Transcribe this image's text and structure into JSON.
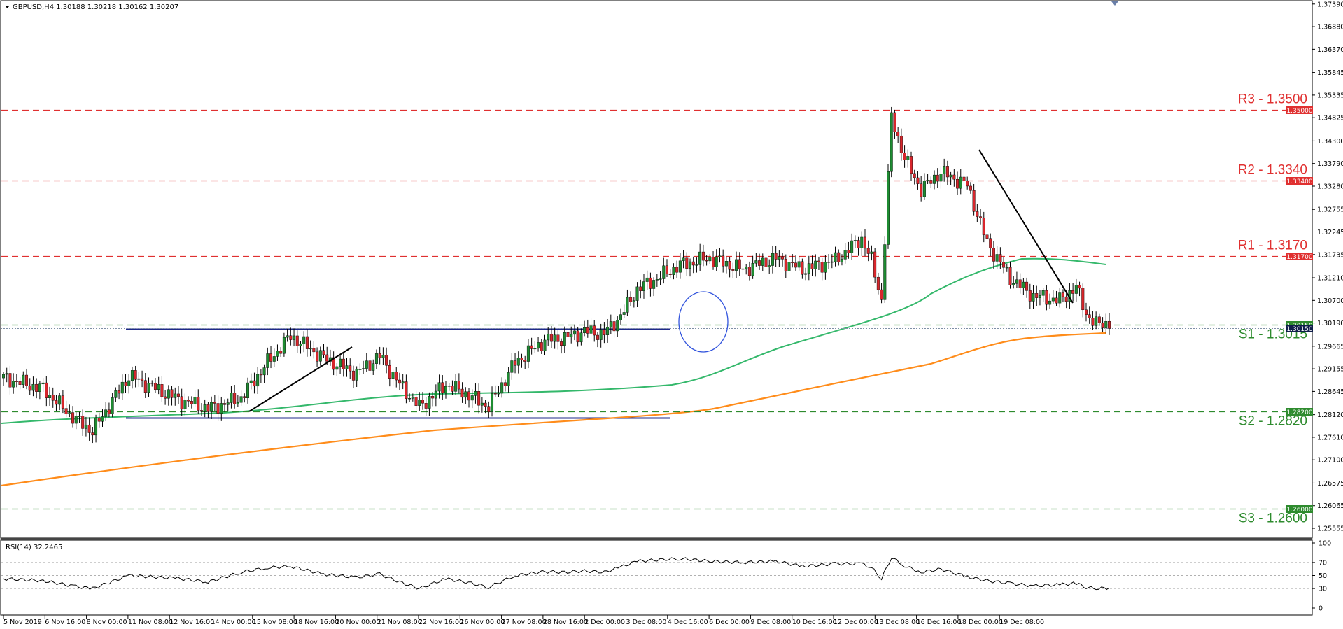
{
  "window": {
    "title": "GBPUSD,H4  1.30188 1.30218 1.30162 1.30207",
    "rsi_title": "RSI(14) 32.2465"
  },
  "colors": {
    "bull_candle": "#1e8c32",
    "bear_candle": "#d8262c",
    "resistance": "#e03030",
    "support": "#2e8b2e",
    "ma_green": "#34b86b",
    "ma_orange": "#ff8c1a",
    "range_lines": "#1f2a8a",
    "circle": "#3355dd",
    "current_price": "#0f1e4a"
  },
  "chart_data": {
    "type": "candlestick",
    "symbol": "GBPUSD",
    "timeframe": "H4",
    "ohlc_current": {
      "open": 1.30188,
      "high": 1.30218,
      "low": 1.30162,
      "close": 1.30207
    },
    "ylim": [
      1.2535,
      1.3745
    ],
    "y_ticks": [
      "1.37390",
      "1.36880",
      "1.36370",
      "1.35845",
      "1.35335",
      "1.34825",
      "1.34300",
      "1.33790",
      "1.33280",
      "1.32755",
      "1.32245",
      "1.31735",
      "1.31210",
      "1.30700",
      "1.30190",
      "1.29665",
      "1.29155",
      "1.28645",
      "1.28120",
      "1.27610",
      "1.27100",
      "1.26575",
      "1.26065",
      "1.25555"
    ],
    "x_ticks": [
      "5 Nov 2019",
      "6 Nov 16:00",
      "8 Nov 00:00",
      "11 Nov 08:00",
      "12 Nov 16:00",
      "14 Nov 00:00",
      "15 Nov 08:00",
      "18 Nov 16:00",
      "20 Nov 00:00",
      "21 Nov 08:00",
      "22 Nov 16:00",
      "26 Nov 00:00",
      "27 Nov 08:00",
      "28 Nov 16:00",
      "2 Dec 00:00",
      "3 Dec 08:00",
      "4 Dec 16:00",
      "6 Dec 00:00",
      "9 Dec 08:00",
      "10 Dec 16:00",
      "12 Dec 00:00",
      "13 Dec 08:00",
      "16 Dec 16:00",
      "18 Dec 00:00",
      "19 Dec 08:00"
    ],
    "levels": [
      {
        "label": "R3 - 1.3500",
        "value": 1.35,
        "tag": "1.35000",
        "kind": "resistance"
      },
      {
        "label": "R2 - 1.3340",
        "value": 1.334,
        "tag": "1.33400",
        "kind": "resistance"
      },
      {
        "label": "R1 - 1.3170",
        "value": 1.317,
        "tag": "1.31700",
        "kind": "resistance"
      },
      {
        "label": "S1 - 1.3015",
        "value": 1.3015,
        "tag": "1.30150",
        "kind": "support"
      },
      {
        "label": "S2 - 1.2820",
        "value": 1.282,
        "tag": "1.28200",
        "kind": "support"
      },
      {
        "label": "S3 - 1.2600",
        "value": 1.26,
        "tag": "1.26000",
        "kind": "support"
      }
    ],
    "price_path": [
      [
        0,
        1.2895
      ],
      [
        12,
        1.287
      ],
      [
        22,
        1.28
      ],
      [
        27,
        1.2775
      ],
      [
        38,
        1.29
      ],
      [
        52,
        1.285
      ],
      [
        62,
        1.2825
      ],
      [
        72,
        1.285
      ],
      [
        80,
        1.293
      ],
      [
        87,
        1.299
      ],
      [
        97,
        1.294
      ],
      [
        107,
        1.2905
      ],
      [
        114,
        1.2945
      ],
      [
        120,
        1.288
      ],
      [
        126,
        1.283
      ],
      [
        134,
        1.288
      ],
      [
        140,
        1.286
      ],
      [
        147,
        1.283
      ],
      [
        155,
        1.293
      ],
      [
        164,
        1.298
      ],
      [
        170,
        1.2985
      ],
      [
        176,
        1.3
      ],
      [
        182,
        1.2995
      ],
      [
        187,
        1.3035
      ],
      [
        192,
        1.3095
      ],
      [
        198,
        1.312
      ],
      [
        205,
        1.315
      ],
      [
        214,
        1.3165
      ],
      [
        224,
        1.314
      ],
      [
        234,
        1.3165
      ],
      [
        242,
        1.314
      ],
      [
        252,
        1.316
      ],
      [
        260,
        1.321
      ],
      [
        263,
        1.316
      ],
      [
        266,
        1.307
      ],
      [
        269,
        1.3485
      ],
      [
        273,
        1.339
      ],
      [
        278,
        1.332
      ],
      [
        284,
        1.336
      ],
      [
        292,
        1.333
      ],
      [
        298,
        1.32
      ],
      [
        305,
        1.312
      ],
      [
        312,
        1.308
      ],
      [
        320,
        1.307
      ],
      [
        325,
        1.31
      ],
      [
        328,
        1.304
      ],
      [
        331,
        1.3015
      ],
      [
        335,
        1.302
      ]
    ],
    "rsi": {
      "name": "RSI(14)",
      "value": 32.2465,
      "ylim": [
        0,
        100
      ],
      "y_ticks": [
        "100",
        "70",
        "50",
        "30",
        "0"
      ],
      "path": [
        [
          0,
          45
        ],
        [
          12,
          42
        ],
        [
          22,
          33
        ],
        [
          27,
          30
        ],
        [
          38,
          50
        ],
        [
          52,
          46
        ],
        [
          62,
          40
        ],
        [
          72,
          55
        ],
        [
          80,
          62
        ],
        [
          87,
          64
        ],
        [
          97,
          52
        ],
        [
          107,
          47
        ],
        [
          114,
          52
        ],
        [
          120,
          40
        ],
        [
          126,
          30
        ],
        [
          134,
          45
        ],
        [
          140,
          40
        ],
        [
          147,
          32
        ],
        [
          155,
          50
        ],
        [
          164,
          56
        ],
        [
          170,
          55
        ],
        [
          176,
          57
        ],
        [
          182,
          55
        ],
        [
          187,
          63
        ],
        [
          192,
          72
        ],
        [
          198,
          74
        ],
        [
          205,
          76
        ],
        [
          214,
          72
        ],
        [
          224,
          70
        ],
        [
          234,
          72
        ],
        [
          242,
          64
        ],
        [
          252,
          68
        ],
        [
          260,
          68
        ],
        [
          263,
          62
        ],
        [
          266,
          45
        ],
        [
          269,
          78
        ],
        [
          273,
          65
        ],
        [
          278,
          55
        ],
        [
          284,
          60
        ],
        [
          292,
          48
        ],
        [
          298,
          42
        ],
        [
          305,
          38
        ],
        [
          312,
          34
        ],
        [
          320,
          36
        ],
        [
          325,
          38
        ],
        [
          328,
          32
        ],
        [
          331,
          30
        ],
        [
          335,
          31
        ]
      ]
    }
  }
}
